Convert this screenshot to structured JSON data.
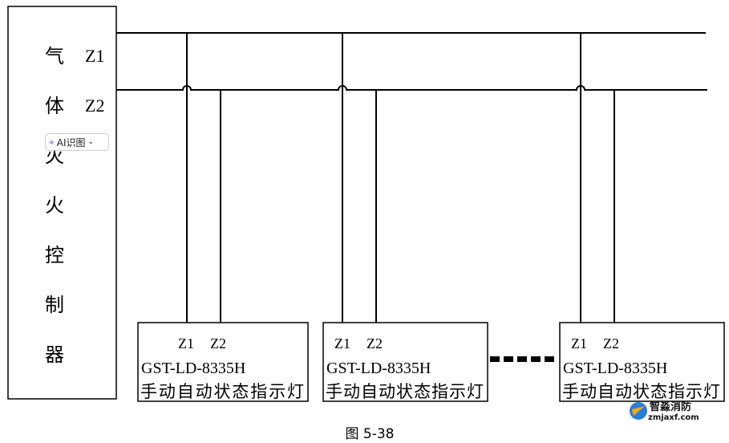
{
  "controller": {
    "chars": [
      "气",
      "体",
      "灭",
      "火",
      "控",
      "制",
      "器"
    ],
    "zone_labels": [
      "Z1",
      "Z2"
    ]
  },
  "devices": [
    {
      "z1": "Z1",
      "z2": "Z2",
      "model": "GST-LD-8335H",
      "name": "手动自动状态指示灯"
    },
    {
      "z1": "Z1",
      "z2": "Z2",
      "model": "GST-LD-8335H",
      "name": "手动自动状态指示灯"
    },
    {
      "z1": "Z1",
      "z2": "Z2",
      "model": "GST-LD-8335H",
      "name": "手动自动状态指示灯"
    }
  ],
  "caption": "图 5-38",
  "ai_badge": {
    "label": "AI识图",
    "icon": "ai-scan-icon"
  },
  "watermark": {
    "name": "智淼消防",
    "url": "zmjaxf.com"
  }
}
